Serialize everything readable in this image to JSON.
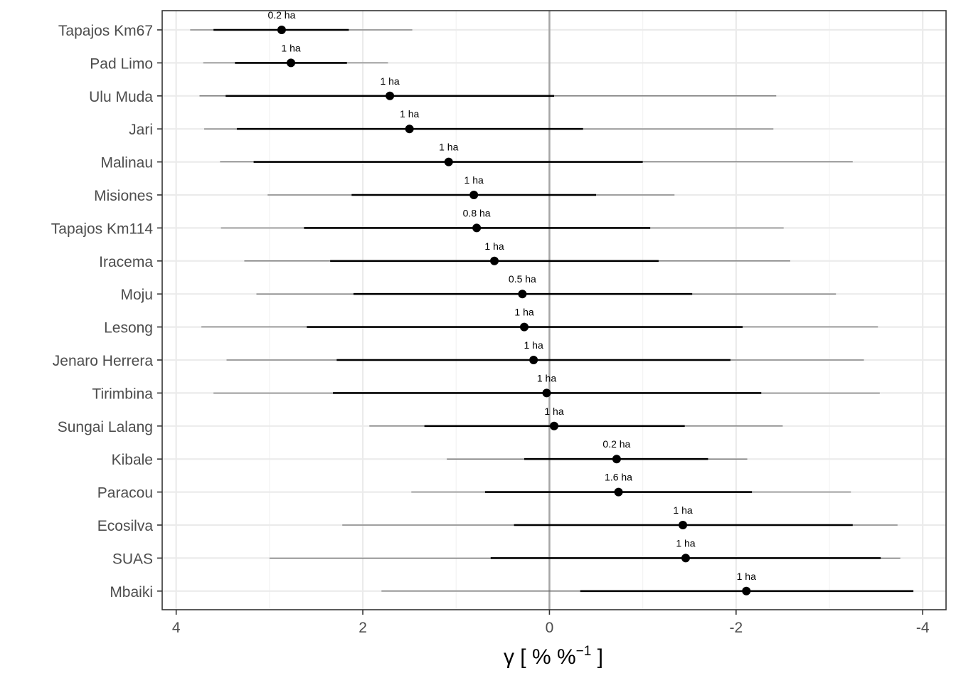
{
  "chart_data": {
    "type": "forest",
    "xlabel": {
      "base": "γ [ % %",
      "sup": "−1",
      "end": " ]"
    },
    "xlim": [
      4.15,
      -4.25
    ],
    "x_reversed": true,
    "x_ticks": [
      4,
      2,
      0,
      -2,
      -4
    ],
    "x_tick_labels": [
      "4",
      "2",
      "0",
      "-2",
      "-4"
    ],
    "reference_line": 0,
    "grid": true,
    "colors": {
      "mark": "#000000",
      "thin": "#555555",
      "grid": "#ebebeb",
      "ref": "#a6a6a6",
      "frame": "#333333"
    },
    "sites": [
      {
        "name": "Tapajos Km67",
        "value": 2.87,
        "inner": [
          3.6,
          2.15
        ],
        "outer": [
          3.85,
          1.47
        ],
        "label": "0.2 ha"
      },
      {
        "name": "Pad Limo",
        "value": 2.77,
        "inner": [
          3.37,
          2.17
        ],
        "outer": [
          3.71,
          1.73
        ],
        "label": "1 ha"
      },
      {
        "name": "Ulu Muda",
        "value": 1.71,
        "inner": [
          3.47,
          -0.05
        ],
        "outer": [
          3.75,
          -2.43
        ],
        "label": "1 ha"
      },
      {
        "name": "Jari",
        "value": 1.5,
        "inner": [
          3.35,
          -0.36
        ],
        "outer": [
          3.7,
          -2.4
        ],
        "label": "1 ha"
      },
      {
        "name": "Malinau",
        "value": 1.08,
        "inner": [
          3.17,
          -1.0
        ],
        "outer": [
          3.53,
          -3.25
        ],
        "label": "1 ha"
      },
      {
        "name": "Misiones",
        "value": 0.81,
        "inner": [
          2.12,
          -0.5
        ],
        "outer": [
          3.02,
          -1.34
        ],
        "label": "1 ha"
      },
      {
        "name": "Tapajos Km114",
        "value": 0.78,
        "inner": [
          2.63,
          -1.08
        ],
        "outer": [
          3.52,
          -2.51
        ],
        "label": "0.8 ha"
      },
      {
        "name": "Iracema",
        "value": 0.59,
        "inner": [
          2.35,
          -1.17
        ],
        "outer": [
          3.27,
          -2.58
        ],
        "label": "1 ha"
      },
      {
        "name": "Moju",
        "value": 0.29,
        "inner": [
          2.1,
          -1.53
        ],
        "outer": [
          3.14,
          -3.07
        ],
        "label": "0.5 ha"
      },
      {
        "name": "Lesong",
        "value": 0.27,
        "inner": [
          2.6,
          -2.07
        ],
        "outer": [
          3.73,
          -3.52
        ],
        "label": "1 ha"
      },
      {
        "name": "Jenaro Herrera",
        "value": 0.17,
        "inner": [
          2.28,
          -1.94
        ],
        "outer": [
          3.46,
          -3.37
        ],
        "label": "1 ha"
      },
      {
        "name": "Tirimbina",
        "value": 0.03,
        "inner": [
          2.32,
          -2.27
        ],
        "outer": [
          3.6,
          -3.54
        ],
        "label": "1 ha"
      },
      {
        "name": "Sungai Lalang",
        "value": -0.05,
        "inner": [
          1.34,
          -1.45
        ],
        "outer": [
          1.93,
          -2.5
        ],
        "label": "1 ha"
      },
      {
        "name": "Kibale",
        "value": -0.72,
        "inner": [
          0.27,
          -1.7
        ],
        "outer": [
          1.1,
          -2.12
        ],
        "label": "0.2 ha"
      },
      {
        "name": "Paracou",
        "value": -0.74,
        "inner": [
          0.69,
          -2.17
        ],
        "outer": [
          1.48,
          -3.23
        ],
        "label": "1.6 ha"
      },
      {
        "name": "Ecosilva",
        "value": -1.43,
        "inner": [
          0.38,
          -3.25
        ],
        "outer": [
          2.22,
          -3.73
        ],
        "label": "1 ha"
      },
      {
        "name": "SUAS",
        "value": -1.46,
        "inner": [
          0.63,
          -3.55
        ],
        "outer": [
          3.0,
          -3.76
        ],
        "label": "1 ha"
      },
      {
        "name": "Mbaiki",
        "value": -2.11,
        "inner": [
          -0.33,
          -3.9
        ],
        "outer": [
          1.8,
          -3.9
        ],
        "label": "1 ha"
      }
    ]
  }
}
